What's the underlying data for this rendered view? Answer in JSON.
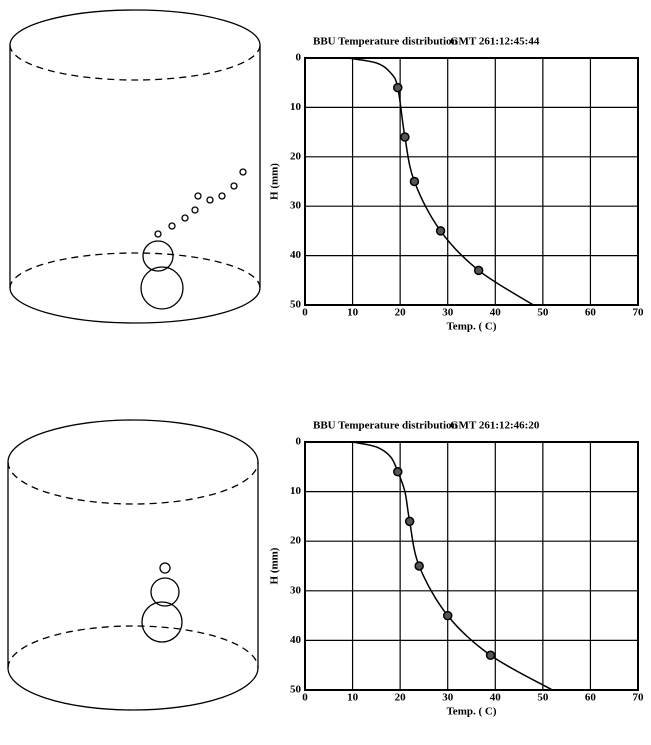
{
  "chart_data": [
    {
      "type": "line",
      "title": "BBU Temperature distribution",
      "subtitle": "GMT 261:12:45:44",
      "x_label": "Temp. ( C)",
      "y_label": "H (mm)",
      "xlim": [
        0,
        70
      ],
      "ylim": [
        0,
        50
      ],
      "y_inverted": true,
      "grid": true,
      "xticks": [
        0,
        10,
        20,
        30,
        40,
        50,
        60,
        70
      ],
      "yticks": [
        0,
        10,
        20,
        30,
        40,
        50
      ],
      "series": [
        {
          "style": "line",
          "color": "#000000",
          "x": [
            9,
            15,
            18,
            19.5,
            21,
            23,
            28.5,
            36.5,
            48
          ],
          "values": [
            0,
            1,
            3,
            6,
            16,
            25,
            35,
            43,
            50
          ]
        },
        {
          "style": "markers",
          "color": "#000000",
          "x": [
            19.5,
            21,
            23,
            28.5,
            36.5
          ],
          "values": [
            6,
            16,
            25,
            35,
            43
          ]
        }
      ]
    },
    {
      "type": "line",
      "title": "BBU Temperature distribution",
      "subtitle": "GMT 261:12:46:20",
      "x_label": "Temp. ( C)",
      "y_label": "H (mm)",
      "xlim": [
        0,
        70
      ],
      "ylim": [
        0,
        50
      ],
      "y_inverted": true,
      "grid": true,
      "xticks": [
        0,
        10,
        20,
        30,
        40,
        50,
        60,
        70
      ],
      "yticks": [
        0,
        10,
        20,
        30,
        40,
        50
      ],
      "series": [
        {
          "style": "line",
          "color": "#000000",
          "x": [
            10,
            15,
            18,
            19.5,
            21,
            22,
            24,
            30,
            39,
            52
          ],
          "values": [
            0,
            1,
            3,
            6,
            10,
            16,
            25,
            35,
            43,
            50
          ]
        },
        {
          "style": "markers",
          "color": "#000000",
          "x": [
            19.5,
            22,
            24,
            30,
            39
          ],
          "values": [
            6,
            16,
            25,
            35,
            43
          ]
        }
      ]
    }
  ]
}
